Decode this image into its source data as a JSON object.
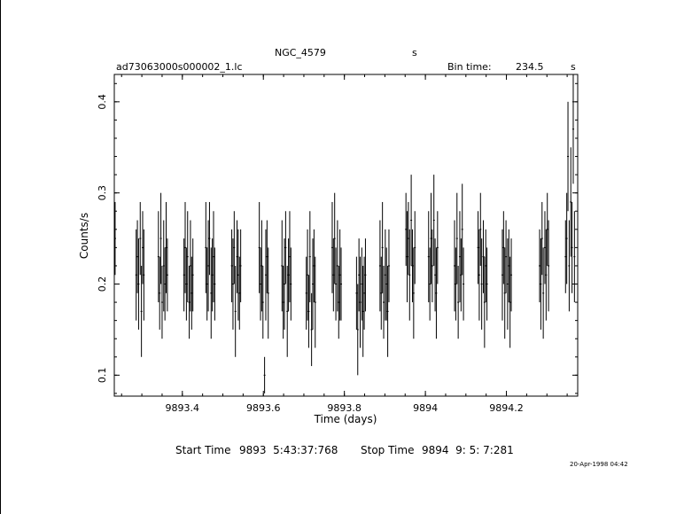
{
  "header": {
    "object_name": "NGC_4579",
    "object_units": "s",
    "file_name": "ad73063000s000002_1.lc",
    "bin_time_label": "Bin time:",
    "bin_time_value": "234.5",
    "bin_time_units": "s"
  },
  "footer": {
    "start_label": "Start Time",
    "start_value": "9893  5:43:37:768",
    "stop_label": "Stop Time",
    "stop_value": "9894  9: 5: 7:281",
    "date_stamp": "20-Apr-1998 04:42"
  },
  "chart_data": {
    "type": "scatter",
    "title": "NGC_4579",
    "xlabel": "Time (days)",
    "ylabel": "Counts/s",
    "xlim": [
      9893.232,
      9894.376
    ],
    "ylim": [
      0.077,
      0.43
    ],
    "x_ticks": [
      9893.4,
      9893.6,
      9893.8,
      9894,
      9894.2
    ],
    "x_tick_labels": [
      "9893.4",
      "9893.6",
      "9893.8",
      "9894",
      "9894.2"
    ],
    "y_ticks": [
      0.1,
      0.2,
      0.3,
      0.4
    ],
    "y_tick_labels": [
      "0.1",
      "0.2",
      "0.3",
      "0.4"
    ],
    "series": [
      {
        "error_bars": "vertical",
        "x": [
          9893.234,
          9893.286,
          9893.289,
          9893.292,
          9893.296,
          9893.299,
          9893.302,
          9893.305,
          9893.341,
          9893.344,
          9893.347,
          9893.35,
          9893.354,
          9893.357,
          9893.36,
          9893.363,
          9893.404,
          9893.407,
          9893.41,
          9893.413,
          9893.417,
          9893.42,
          9893.423,
          9893.426,
          9893.458,
          9893.461,
          9893.464,
          9893.467,
          9893.471,
          9893.474,
          9893.477,
          9893.48,
          9893.522,
          9893.525,
          9893.528,
          9893.531,
          9893.535,
          9893.538,
          9893.541,
          9893.544,
          9893.59,
          9893.593,
          9893.596,
          9893.599,
          9893.603,
          9893.606,
          9893.609,
          9893.612,
          9893.646,
          9893.649,
          9893.652,
          9893.655,
          9893.659,
          9893.662,
          9893.665,
          9893.668,
          9893.706,
          9893.709,
          9893.712,
          9893.715,
          9893.719,
          9893.722,
          9893.725,
          9893.728,
          9893.77,
          9893.773,
          9893.776,
          9893.779,
          9893.783,
          9893.786,
          9893.789,
          9893.792,
          9893.83,
          9893.833,
          9893.836,
          9893.839,
          9893.843,
          9893.846,
          9893.849,
          9893.852,
          9893.888,
          9893.891,
          9893.894,
          9893.897,
          9893.901,
          9893.904,
          9893.907,
          9893.91,
          9893.952,
          9893.955,
          9893.958,
          9893.961,
          9893.965,
          9893.968,
          9893.971,
          9893.974,
          9894.008,
          9894.011,
          9894.014,
          9894.017,
          9894.021,
          9894.024,
          9894.027,
          9894.03,
          9894.072,
          9894.075,
          9894.078,
          9894.081,
          9894.085,
          9894.088,
          9894.091,
          9894.094,
          9894.13,
          9894.133,
          9894.136,
          9894.139,
          9894.143,
          9894.146,
          9894.149,
          9894.152,
          9894.19,
          9894.193,
          9894.196,
          9894.199,
          9894.203,
          9894.206,
          9894.209,
          9894.212,
          9894.282,
          9894.285,
          9894.288,
          9894.291,
          9894.295,
          9894.298,
          9894.301,
          9894.304,
          9894.346,
          9894.349,
          9894.352,
          9894.355,
          9894.359,
          9894.362,
          9894.365,
          9894.368
        ],
        "y": [
          0.25,
          0.21,
          0.23,
          0.2,
          0.25,
          0.17,
          0.24,
          0.21,
          0.23,
          0.19,
          0.25,
          0.18,
          0.22,
          0.2,
          0.24,
          0.21,
          0.21,
          0.24,
          0.2,
          0.23,
          0.18,
          0.22,
          0.19,
          0.21,
          0.24,
          0.2,
          0.22,
          0.25,
          0.19,
          0.21,
          0.23,
          0.2,
          0.22,
          0.2,
          0.24,
          0.17,
          0.23,
          0.21,
          0.19,
          0.22,
          0.24,
          0.2,
          0.22,
          0.18,
          0.1,
          0.21,
          0.23,
          0.19,
          0.22,
          0.18,
          0.2,
          0.24,
          0.17,
          0.21,
          0.23,
          0.2,
          0.19,
          0.21,
          0.17,
          0.23,
          0.15,
          0.2,
          0.22,
          0.18,
          0.24,
          0.21,
          0.25,
          0.2,
          0.22,
          0.18,
          0.21,
          0.2,
          0.19,
          0.15,
          0.21,
          0.18,
          0.2,
          0.17,
          0.19,
          0.21,
          0.22,
          0.19,
          0.24,
          0.18,
          0.21,
          0.2,
          0.17,
          0.22,
          0.26,
          0.23,
          0.25,
          0.21,
          0.27,
          0.22,
          0.19,
          0.24,
          0.23,
          0.2,
          0.25,
          0.22,
          0.27,
          0.21,
          0.19,
          0.24,
          0.22,
          0.2,
          0.25,
          0.18,
          0.23,
          0.21,
          0.26,
          0.2,
          0.24,
          0.21,
          0.26,
          0.2,
          0.23,
          0.18,
          0.22,
          0.2,
          0.21,
          0.24,
          0.19,
          0.23,
          0.2,
          0.22,
          0.18,
          0.21,
          0.22,
          0.2,
          0.25,
          0.19,
          0.24,
          0.21,
          0.26,
          0.22,
          0.23,
          0.25,
          0.34,
          0.22,
          0.29,
          0.24,
          0.37,
          0.23
        ],
        "err": [
          0.04,
          0.05,
          0.04,
          0.05,
          0.04,
          0.05,
          0.04,
          0.05,
          0.05,
          0.04,
          0.05,
          0.04,
          0.05,
          0.04,
          0.05,
          0.04,
          0.04,
          0.05,
          0.04,
          0.05,
          0.04,
          0.05,
          0.04,
          0.04,
          0.05,
          0.04,
          0.05,
          0.04,
          0.05,
          0.04,
          0.05,
          0.04,
          0.04,
          0.05,
          0.04,
          0.05,
          0.04,
          0.05,
          0.04,
          0.04,
          0.05,
          0.04,
          0.05,
          0.04,
          0.02,
          0.05,
          0.04,
          0.05,
          0.05,
          0.04,
          0.05,
          0.04,
          0.05,
          0.04,
          0.05,
          0.04,
          0.04,
          0.05,
          0.04,
          0.05,
          0.04,
          0.05,
          0.04,
          0.05,
          0.05,
          0.04,
          0.05,
          0.04,
          0.05,
          0.04,
          0.05,
          0.04,
          0.04,
          0.05,
          0.04,
          0.05,
          0.04,
          0.05,
          0.04,
          0.04,
          0.05,
          0.04,
          0.05,
          0.04,
          0.05,
          0.04,
          0.05,
          0.04,
          0.04,
          0.05,
          0.04,
          0.05,
          0.05,
          0.04,
          0.05,
          0.04,
          0.05,
          0.04,
          0.05,
          0.04,
          0.05,
          0.04,
          0.05,
          0.04,
          0.05,
          0.04,
          0.05,
          0.04,
          0.05,
          0.04,
          0.05,
          0.04,
          0.04,
          0.05,
          0.04,
          0.05,
          0.04,
          0.05,
          0.04,
          0.04,
          0.05,
          0.04,
          0.05,
          0.04,
          0.05,
          0.04,
          0.05,
          0.04,
          0.04,
          0.05,
          0.04,
          0.05,
          0.04,
          0.05,
          0.04,
          0.05,
          0.04,
          0.05,
          0.06,
          0.05,
          0.06,
          0.05,
          0.06,
          0.05
        ]
      }
    ]
  }
}
